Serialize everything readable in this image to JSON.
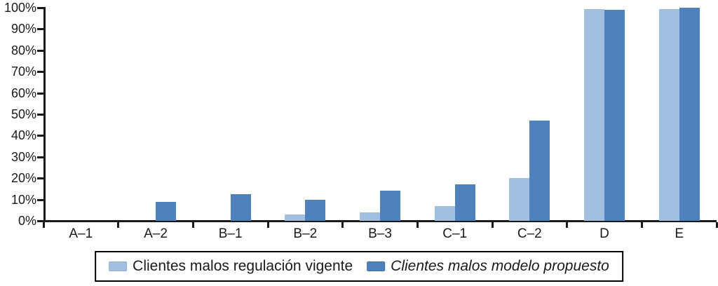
{
  "chart_data": {
    "type": "bar",
    "title": "",
    "xlabel": "",
    "ylabel": "",
    "categories": [
      "A–1",
      "A–2",
      "B–1",
      "B–2",
      "B–3",
      "C–1",
      "C–2",
      "D",
      "E"
    ],
    "series": [
      {
        "name": "Clientes malos regulación vigente",
        "color": "#A3BFDF",
        "border_color": "#8FB0D6",
        "italic": false,
        "values": [
          0,
          0,
          0,
          3,
          4,
          7,
          20,
          99.5,
          99.5
        ]
      },
      {
        "name": "Clientes malos modelo propuesto",
        "color": "#4F81BD",
        "border_color": "#3D6EA5",
        "italic": true,
        "values": [
          0,
          9,
          12.5,
          10,
          14,
          17,
          47,
          99,
          100
        ]
      }
    ],
    "ylim": [
      0,
      100
    ],
    "y_tick_labels": [
      "0%",
      "10%",
      "20%",
      "30%",
      "40%",
      "50%",
      "60%",
      "70%",
      "80%",
      "90%",
      "100%"
    ],
    "grid": false,
    "legend_position": "bottom",
    "axis_color": "#1a1a1a",
    "background": "#ffffff"
  }
}
